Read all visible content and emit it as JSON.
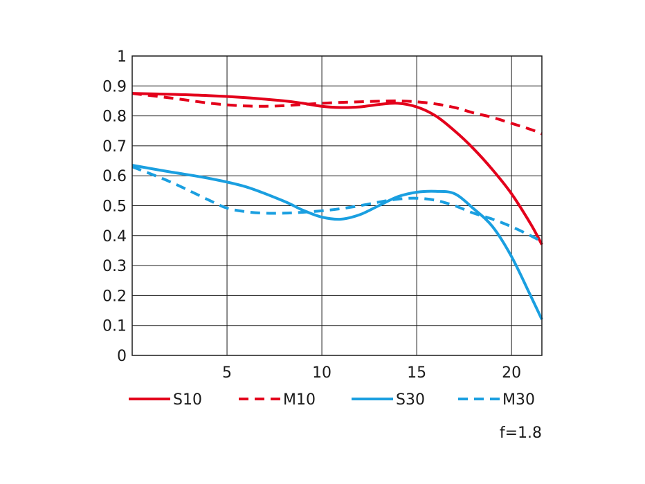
{
  "chart_data": {
    "type": "line",
    "title": "",
    "xlabel": "",
    "ylabel": "",
    "xlim": [
      0,
      21.6
    ],
    "ylim": [
      0,
      1
    ],
    "xticks": [
      5,
      10,
      15,
      20
    ],
    "yticks": [
      0,
      0.1,
      0.2,
      0.3,
      0.4,
      0.5,
      0.6,
      0.7,
      0.8,
      0.9,
      1
    ],
    "grid": true,
    "legend_position": "bottom",
    "annotation": "f=1.8",
    "series": [
      {
        "name": "S10",
        "color": "#e3001b",
        "dash": "solid",
        "x": [
          0,
          2,
          4,
          6,
          8,
          9,
          10,
          11,
          12,
          13,
          14,
          15,
          16,
          17,
          18,
          19,
          20,
          21,
          21.6
        ],
        "y": [
          0.875,
          0.872,
          0.868,
          0.861,
          0.85,
          0.842,
          0.832,
          0.828,
          0.83,
          0.838,
          0.842,
          0.83,
          0.8,
          0.75,
          0.69,
          0.62,
          0.54,
          0.44,
          0.37
        ]
      },
      {
        "name": "M10",
        "color": "#e3001b",
        "dash": "dashed",
        "x": [
          0,
          2,
          4,
          5,
          6,
          7,
          8,
          9,
          10,
          11,
          12,
          13,
          14,
          15,
          16,
          17,
          18,
          19,
          20,
          21,
          21.6
        ],
        "y": [
          0.875,
          0.86,
          0.843,
          0.837,
          0.833,
          0.832,
          0.834,
          0.838,
          0.842,
          0.845,
          0.847,
          0.849,
          0.85,
          0.847,
          0.84,
          0.828,
          0.81,
          0.795,
          0.775,
          0.755,
          0.74
        ]
      },
      {
        "name": "S30",
        "color": "#1a9fe0",
        "dash": "solid",
        "x": [
          0,
          2,
          4,
          6,
          8,
          9,
          10,
          11,
          12,
          13,
          14,
          15,
          16,
          17,
          18,
          19,
          20,
          21,
          21.6
        ],
        "y": [
          0.635,
          0.613,
          0.592,
          0.563,
          0.515,
          0.485,
          0.462,
          0.455,
          0.47,
          0.5,
          0.53,
          0.545,
          0.548,
          0.54,
          0.49,
          0.43,
          0.33,
          0.2,
          0.12
        ]
      },
      {
        "name": "M30",
        "color": "#1a9fe0",
        "dash": "dashed",
        "x": [
          0,
          2,
          4,
          5,
          6,
          7,
          8,
          9,
          10,
          11,
          12,
          13,
          14,
          15,
          16,
          17,
          18,
          19,
          20,
          21,
          21.6
        ],
        "y": [
          0.63,
          0.58,
          0.52,
          0.492,
          0.48,
          0.475,
          0.475,
          0.478,
          0.483,
          0.49,
          0.5,
          0.512,
          0.522,
          0.525,
          0.518,
          0.5,
          0.475,
          0.455,
          0.43,
          0.4,
          0.38
        ]
      }
    ]
  }
}
